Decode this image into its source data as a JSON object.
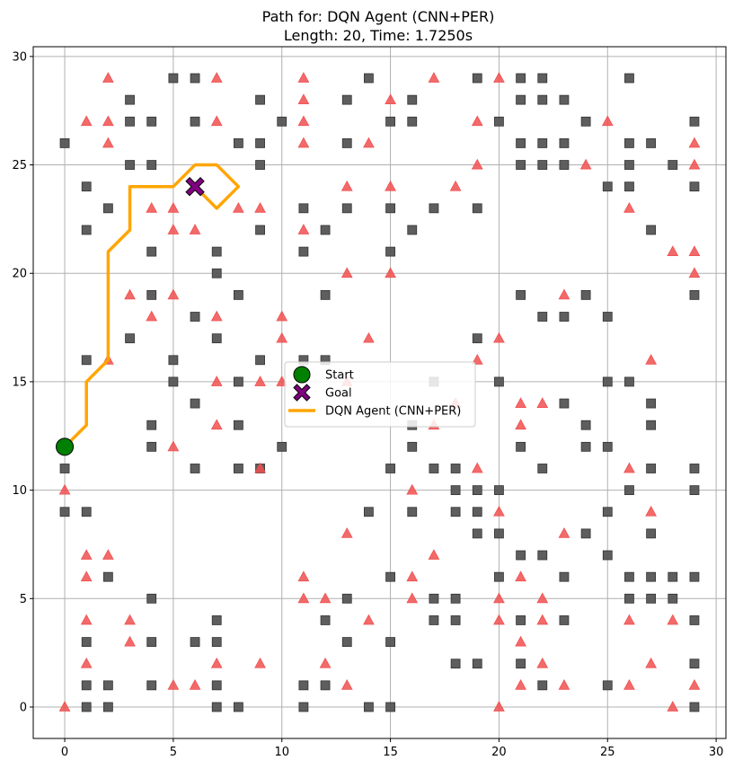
{
  "chart_data": {
    "type": "scatter",
    "title": "Path for: DQN Agent (CNN+PER)",
    "subtitle": "Length: 20, Time: 1.7250s",
    "xlabel": "",
    "ylabel": "",
    "xlim": [
      -1.45,
      30.45
    ],
    "ylim": [
      -1.45,
      30.45
    ],
    "xticks": [
      0,
      5,
      10,
      15,
      20,
      25,
      30
    ],
    "yticks": [
      0,
      5,
      10,
      15,
      20,
      25,
      30
    ],
    "grid": true,
    "legend_placement": "center",
    "legend": [
      {
        "label": "Start",
        "kind": "circle"
      },
      {
        "label": "Goal",
        "kind": "cross"
      },
      {
        "label": "DQN Agent (CNN+PER)",
        "kind": "line"
      }
    ],
    "colors": {
      "obstacle": "#555555",
      "hazard": "#f05050",
      "start": "#008000",
      "goal": "#800080",
      "path": "#ffa500",
      "grid": "#b0b0b0"
    },
    "start": [
      0,
      12
    ],
    "goal": [
      6,
      24
    ],
    "path": [
      [
        0,
        12
      ],
      [
        1,
        13
      ],
      [
        1,
        15
      ],
      [
        2,
        16
      ],
      [
        2,
        21
      ],
      [
        3,
        22
      ],
      [
        3,
        24
      ],
      [
        4,
        24
      ],
      [
        5,
        24
      ],
      [
        6,
        25
      ],
      [
        7,
        25
      ],
      [
        8,
        24
      ],
      [
        7,
        23
      ],
      [
        6,
        24
      ]
    ],
    "obstacles": [
      [
        5,
        29
      ],
      [
        6,
        29
      ],
      [
        14,
        29
      ],
      [
        19,
        29
      ],
      [
        21,
        29
      ],
      [
        22,
        29
      ],
      [
        26,
        29
      ],
      [
        3,
        28
      ],
      [
        9,
        28
      ],
      [
        13,
        28
      ],
      [
        16,
        28
      ],
      [
        21,
        28
      ],
      [
        22,
        28
      ],
      [
        23,
        28
      ],
      [
        3,
        27
      ],
      [
        4,
        27
      ],
      [
        6,
        27
      ],
      [
        10,
        27
      ],
      [
        15,
        27
      ],
      [
        16,
        27
      ],
      [
        20,
        27
      ],
      [
        24,
        27
      ],
      [
        29,
        27
      ],
      [
        0,
        26
      ],
      [
        8,
        26
      ],
      [
        9,
        26
      ],
      [
        13,
        26
      ],
      [
        21,
        26
      ],
      [
        22,
        26
      ],
      [
        23,
        26
      ],
      [
        26,
        26
      ],
      [
        27,
        26
      ],
      [
        3,
        25
      ],
      [
        4,
        25
      ],
      [
        9,
        25
      ],
      [
        21,
        25
      ],
      [
        22,
        25
      ],
      [
        23,
        25
      ],
      [
        26,
        25
      ],
      [
        28,
        25
      ],
      [
        1,
        24
      ],
      [
        25,
        24
      ],
      [
        26,
        24
      ],
      [
        29,
        24
      ],
      [
        2,
        23
      ],
      [
        11,
        23
      ],
      [
        13,
        23
      ],
      [
        15,
        23
      ],
      [
        17,
        23
      ],
      [
        19,
        23
      ],
      [
        1,
        22
      ],
      [
        9,
        22
      ],
      [
        12,
        22
      ],
      [
        16,
        22
      ],
      [
        27,
        22
      ],
      [
        4,
        21
      ],
      [
        7,
        21
      ],
      [
        11,
        21
      ],
      [
        15,
        21
      ],
      [
        7,
        20
      ],
      [
        4,
        19
      ],
      [
        8,
        19
      ],
      [
        12,
        19
      ],
      [
        21,
        19
      ],
      [
        24,
        19
      ],
      [
        29,
        19
      ],
      [
        6,
        18
      ],
      [
        22,
        18
      ],
      [
        23,
        18
      ],
      [
        25,
        18
      ],
      [
        3,
        17
      ],
      [
        7,
        17
      ],
      [
        19,
        17
      ],
      [
        1,
        16
      ],
      [
        5,
        16
      ],
      [
        9,
        16
      ],
      [
        11,
        16
      ],
      [
        12,
        16
      ],
      [
        5,
        15
      ],
      [
        8,
        15
      ],
      [
        17,
        15
      ],
      [
        20,
        15
      ],
      [
        25,
        15
      ],
      [
        26,
        15
      ],
      [
        6,
        14
      ],
      [
        23,
        14
      ],
      [
        27,
        14
      ],
      [
        4,
        13
      ],
      [
        8,
        13
      ],
      [
        16,
        13
      ],
      [
        24,
        13
      ],
      [
        27,
        13
      ],
      [
        4,
        12
      ],
      [
        10,
        12
      ],
      [
        16,
        12
      ],
      [
        21,
        12
      ],
      [
        24,
        12
      ],
      [
        25,
        12
      ],
      [
        0,
        11
      ],
      [
        6,
        11
      ],
      [
        8,
        11
      ],
      [
        9,
        11
      ],
      [
        15,
        11
      ],
      [
        17,
        11
      ],
      [
        18,
        11
      ],
      [
        22,
        11
      ],
      [
        27,
        11
      ],
      [
        29,
        11
      ],
      [
        18,
        10
      ],
      [
        19,
        10
      ],
      [
        20,
        10
      ],
      [
        26,
        10
      ],
      [
        29,
        10
      ],
      [
        0,
        9
      ],
      [
        1,
        9
      ],
      [
        14,
        9
      ],
      [
        16,
        9
      ],
      [
        18,
        9
      ],
      [
        19,
        9
      ],
      [
        25,
        9
      ],
      [
        19,
        8
      ],
      [
        20,
        8
      ],
      [
        24,
        8
      ],
      [
        27,
        8
      ],
      [
        21,
        7
      ],
      [
        22,
        7
      ],
      [
        25,
        7
      ],
      [
        2,
        6
      ],
      [
        15,
        6
      ],
      [
        20,
        6
      ],
      [
        23,
        6
      ],
      [
        26,
        6
      ],
      [
        27,
        6
      ],
      [
        28,
        6
      ],
      [
        29,
        6
      ],
      [
        4,
        5
      ],
      [
        13,
        5
      ],
      [
        17,
        5
      ],
      [
        18,
        5
      ],
      [
        26,
        5
      ],
      [
        27,
        5
      ],
      [
        28,
        5
      ],
      [
        7,
        4
      ],
      [
        12,
        4
      ],
      [
        17,
        4
      ],
      [
        18,
        4
      ],
      [
        21,
        4
      ],
      [
        23,
        4
      ],
      [
        29,
        4
      ],
      [
        1,
        3
      ],
      [
        4,
        3
      ],
      [
        6,
        3
      ],
      [
        7,
        3
      ],
      [
        13,
        3
      ],
      [
        15,
        3
      ],
      [
        18,
        2
      ],
      [
        19,
        2
      ],
      [
        21,
        2
      ],
      [
        29,
        2
      ],
      [
        1,
        1
      ],
      [
        2,
        1
      ],
      [
        4,
        1
      ],
      [
        7,
        1
      ],
      [
        11,
        1
      ],
      [
        12,
        1
      ],
      [
        22,
        1
      ],
      [
        25,
        1
      ],
      [
        1,
        0
      ],
      [
        2,
        0
      ],
      [
        7,
        0
      ],
      [
        8,
        0
      ],
      [
        11,
        0
      ],
      [
        14,
        0
      ],
      [
        15,
        0
      ],
      [
        29,
        0
      ]
    ],
    "hazards": [
      [
        2,
        29
      ],
      [
        7,
        29
      ],
      [
        11,
        29
      ],
      [
        17,
        29
      ],
      [
        20,
        29
      ],
      [
        11,
        28
      ],
      [
        15,
        28
      ],
      [
        1,
        27
      ],
      [
        2,
        27
      ],
      [
        7,
        27
      ],
      [
        11,
        27
      ],
      [
        19,
        27
      ],
      [
        25,
        27
      ],
      [
        2,
        26
      ],
      [
        11,
        26
      ],
      [
        14,
        26
      ],
      [
        29,
        26
      ],
      [
        19,
        25
      ],
      [
        24,
        25
      ],
      [
        29,
        25
      ],
      [
        13,
        24
      ],
      [
        15,
        24
      ],
      [
        18,
        24
      ],
      [
        4,
        23
      ],
      [
        5,
        23
      ],
      [
        8,
        23
      ],
      [
        9,
        23
      ],
      [
        26,
        23
      ],
      [
        5,
        22
      ],
      [
        6,
        22
      ],
      [
        11,
        22
      ],
      [
        28,
        21
      ],
      [
        29,
        21
      ],
      [
        13,
        20
      ],
      [
        15,
        20
      ],
      [
        29,
        20
      ],
      [
        3,
        19
      ],
      [
        5,
        19
      ],
      [
        23,
        19
      ],
      [
        4,
        18
      ],
      [
        7,
        18
      ],
      [
        10,
        18
      ],
      [
        10,
        17
      ],
      [
        14,
        17
      ],
      [
        20,
        17
      ],
      [
        2,
        16
      ],
      [
        19,
        16
      ],
      [
        27,
        16
      ],
      [
        7,
        15
      ],
      [
        9,
        15
      ],
      [
        10,
        15
      ],
      [
        13,
        15
      ],
      [
        18,
        14
      ],
      [
        21,
        14
      ],
      [
        22,
        14
      ],
      [
        7,
        13
      ],
      [
        17,
        13
      ],
      [
        21,
        13
      ],
      [
        5,
        12
      ],
      [
        9,
        11
      ],
      [
        19,
        11
      ],
      [
        26,
        11
      ],
      [
        0,
        10
      ],
      [
        16,
        10
      ],
      [
        20,
        9
      ],
      [
        27,
        9
      ],
      [
        13,
        8
      ],
      [
        23,
        8
      ],
      [
        1,
        7
      ],
      [
        2,
        7
      ],
      [
        17,
        7
      ],
      [
        1,
        6
      ],
      [
        11,
        6
      ],
      [
        16,
        6
      ],
      [
        21,
        6
      ],
      [
        11,
        5
      ],
      [
        12,
        5
      ],
      [
        16,
        5
      ],
      [
        20,
        5
      ],
      [
        22,
        5
      ],
      [
        1,
        4
      ],
      [
        3,
        4
      ],
      [
        14,
        4
      ],
      [
        20,
        4
      ],
      [
        22,
        4
      ],
      [
        26,
        4
      ],
      [
        28,
        4
      ],
      [
        3,
        3
      ],
      [
        21,
        3
      ],
      [
        1,
        2
      ],
      [
        7,
        2
      ],
      [
        9,
        2
      ],
      [
        12,
        2
      ],
      [
        22,
        2
      ],
      [
        27,
        2
      ],
      [
        5,
        1
      ],
      [
        6,
        1
      ],
      [
        13,
        1
      ],
      [
        21,
        1
      ],
      [
        23,
        1
      ],
      [
        26,
        1
      ],
      [
        29,
        1
      ],
      [
        0,
        0
      ],
      [
        20,
        0
      ],
      [
        28,
        0
      ]
    ]
  }
}
